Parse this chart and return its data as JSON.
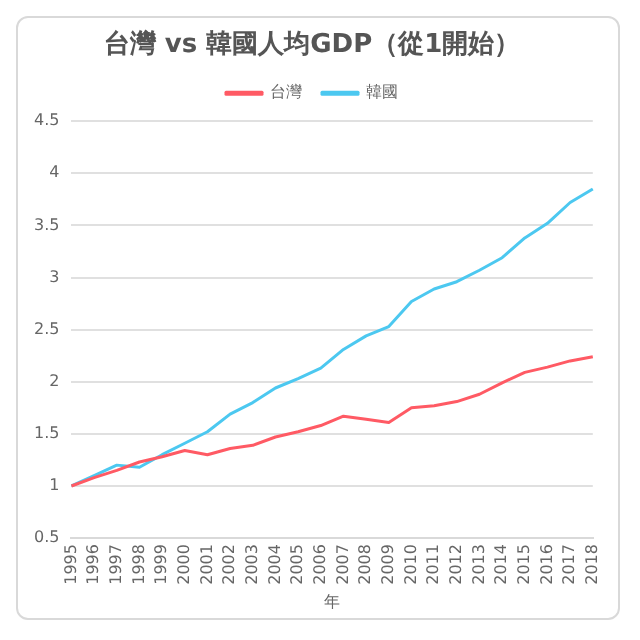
{
  "chart_data": {
    "type": "line",
    "title": "台灣 vs 韓國人均GDP（從1開始）",
    "xlabel": "年",
    "categories": [
      "1995",
      "1996",
      "1997",
      "1998",
      "1999",
      "2000",
      "2001",
      "2002",
      "2003",
      "2004",
      "2005",
      "2006",
      "2007",
      "2008",
      "2009",
      "2010",
      "2011",
      "2012",
      "2013",
      "2014",
      "2015",
      "2016",
      "2017",
      "2018"
    ],
    "series": [
      {
        "name": "台灣",
        "color": "#ff5a64",
        "values": [
          1.0,
          1.08,
          1.15,
          1.23,
          1.28,
          1.34,
          1.3,
          1.36,
          1.39,
          1.47,
          1.52,
          1.58,
          1.67,
          1.64,
          1.61,
          1.75,
          1.77,
          1.81,
          1.88,
          1.99,
          2.09,
          2.14,
          2.2,
          2.24
        ]
      },
      {
        "name": "韓國",
        "color": "#4cc8f0",
        "values": [
          1.0,
          1.1,
          1.2,
          1.18,
          1.3,
          1.41,
          1.52,
          1.69,
          1.8,
          1.94,
          2.03,
          2.13,
          2.31,
          2.44,
          2.53,
          2.77,
          2.89,
          2.96,
          3.07,
          3.19,
          3.38,
          3.52,
          3.72,
          3.85
        ]
      }
    ],
    "ylim": [
      0.5,
      4.5
    ],
    "yticks": [
      0.5,
      1,
      1.5,
      2,
      2.5,
      3,
      3.5,
      4,
      4.5
    ],
    "grid": "y",
    "legend": "top",
    "marker": "none",
    "line_style": "solid"
  }
}
